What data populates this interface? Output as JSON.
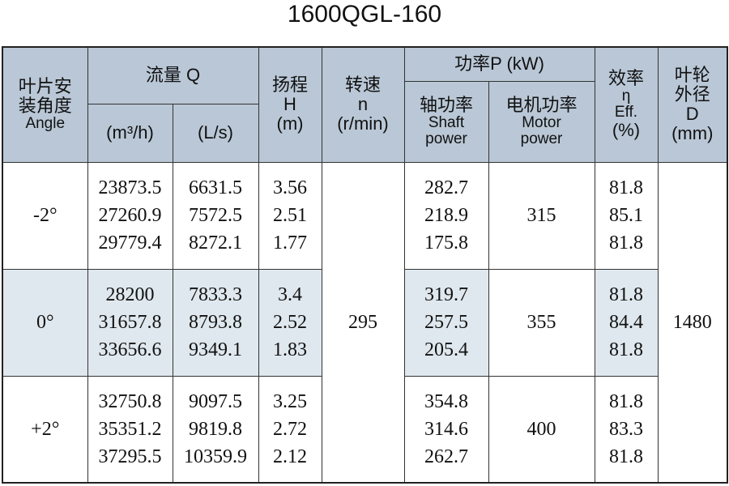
{
  "title": "1600QGL-160",
  "header": {
    "angle": [
      "叶片安",
      "装角度",
      "Angle"
    ],
    "flow": "流量 Q",
    "flow_m3h": "(m³/h)",
    "flow_ls": "(L/s)",
    "head": [
      "扬程",
      "H",
      "(m)"
    ],
    "speed": [
      "转速",
      "n",
      "(r/min)"
    ],
    "power": "功率P (kW)",
    "shaft": [
      "轴功率",
      "Shaft",
      "power"
    ],
    "motor": [
      "电机功率",
      "Motor",
      "power"
    ],
    "eff": [
      "效率",
      "η",
      "Eff.",
      "(%)"
    ],
    "diameter": [
      "叶轮",
      "外径",
      "D",
      "(mm)"
    ]
  },
  "speed": "295",
  "diameter": "1480",
  "rows": [
    {
      "angle": "-2°",
      "flow_m3h": [
        "23873.5",
        "27260.9",
        "29779.4"
      ],
      "flow_ls": [
        "6631.5",
        "7572.5",
        "8272.1"
      ],
      "head": [
        "3.56",
        "2.51",
        "1.77"
      ],
      "shaft": [
        "282.7",
        "218.9",
        "175.8"
      ],
      "motor": "315",
      "eff": [
        "81.8",
        "85.1",
        "81.8"
      ]
    },
    {
      "angle": "0°",
      "flow_m3h": [
        "28200",
        "31657.8",
        "33656.6"
      ],
      "flow_ls": [
        "7833.3",
        "8793.8",
        "9349.1"
      ],
      "head": [
        "3.4",
        "2.52",
        "1.83"
      ],
      "shaft": [
        "319.7",
        "257.5",
        "205.4"
      ],
      "motor": "355",
      "eff": [
        "81.8",
        "84.4",
        "81.8"
      ]
    },
    {
      "angle": "+2°",
      "flow_m3h": [
        "32750.8",
        "35351.2",
        "37295.5"
      ],
      "flow_ls": [
        "9097.5",
        "9819.8",
        "10359.9"
      ],
      "head": [
        "3.25",
        "2.72",
        "2.12"
      ],
      "shaft": [
        "354.8",
        "314.6",
        "262.7"
      ],
      "motor": "400",
      "eff": [
        "81.8",
        "83.3",
        "81.8"
      ]
    }
  ]
}
